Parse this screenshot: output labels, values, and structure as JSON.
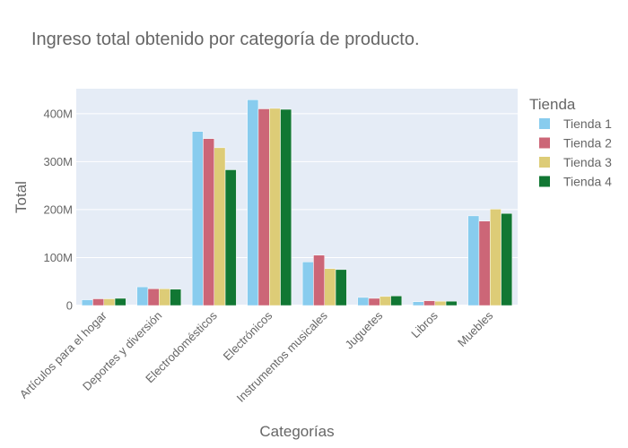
{
  "chart_data": {
    "type": "bar",
    "title": "Ingreso total obtenido por categoría de producto.",
    "xlabel": "Categorías",
    "ylabel": "Total",
    "categories": [
      "Artículos para el hogar",
      "Deportes y diversión",
      "Electrodomésticos",
      "Electrónicos",
      "Instrumentos musicales",
      "Juguetes",
      "Libros",
      "Muebles"
    ],
    "series": [
      {
        "name": "Tienda 1",
        "color": "#88CCEE",
        "values": [
          12000000,
          39000000,
          363000000,
          429000000,
          91000000,
          17000000,
          8000000,
          187000000
        ]
      },
      {
        "name": "Tienda 2",
        "color": "#CC6677",
        "values": [
          14000000,
          35000000,
          348000000,
          410000000,
          105000000,
          15000000,
          10000000,
          176000000
        ]
      },
      {
        "name": "Tienda 3",
        "color": "#DDCC77",
        "values": [
          14000000,
          35000000,
          329000000,
          411000000,
          77000000,
          19000000,
          9000000,
          201000000
        ]
      },
      {
        "name": "Tienda 4",
        "color": "#117733",
        "values": [
          15000000,
          34000000,
          283000000,
          409000000,
          75000000,
          20000000,
          9000000,
          192000000
        ]
      }
    ],
    "legend": {
      "title": "Tienda",
      "placement": "right"
    },
    "yticks": [
      0,
      100000000,
      200000000,
      300000000,
      400000000
    ],
    "ytick_labels": [
      "0",
      "100M",
      "200M",
      "300M",
      "400M"
    ],
    "ylim": [
      0,
      452000000
    ],
    "grid": true,
    "plot_background": "#E5ECF6"
  }
}
